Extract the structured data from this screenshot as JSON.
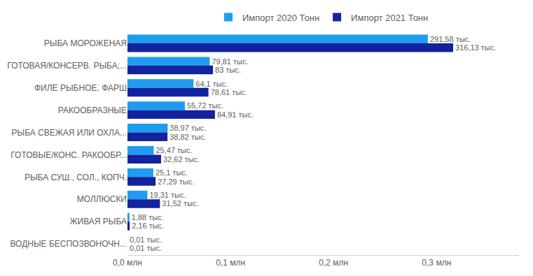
{
  "chart_data": {
    "type": "bar",
    "orientation": "horizontal",
    "legend": "top",
    "data_labels": true,
    "grid": false,
    "categories": [
      "РЫБА МОРОЖЕНАЯ",
      "ГОТОВАЯ/КОНСЕРВ. РЫБА;...",
      "ФИЛЕ РЫБНОЕ, ФАРШ",
      "РАКООБРАЗНЫЕ",
      "РЫБА СВЕЖАЯ ИЛИ ОХЛА...",
      "ГОТОВЫЕ/КОНС. РАКООБР...",
      "РЫБА СУШ., СОЛ., КОПЧ.",
      "МОЛЛЮСКИ",
      "ЖИВАЯ РЫБА",
      "ВОДНЫЕ БЕСПОЗВОНОЧН..."
    ],
    "series": [
      {
        "name": "Импорт 2020 Тонн",
        "color": "#1f9cf0",
        "values": [
          291580,
          79810,
          64100,
          55720,
          38970,
          25470,
          25100,
          19310,
          1880,
          10
        ],
        "value_labels": [
          "291,58 тыс.",
          "79,81 тыс.",
          "64,1 тыс.",
          "55,72 тыс.",
          "38,97 тыс.",
          "25,47 тыс.",
          "25,1 тыс.",
          "19,31 тыс.",
          "1,88 тыс.",
          "0,01 тыс."
        ]
      },
      {
        "name": "Импорт 2021 Тонн",
        "color": "#12239e",
        "values": [
          316130,
          83000,
          78610,
          84910,
          38820,
          32620,
          27290,
          31520,
          2160,
          10
        ],
        "value_labels": [
          "316,13 тыс.",
          "83 тыс.",
          "78,61 тыс.",
          "84,91 тыс.",
          "38,82 тыс.",
          "32,62 тыс.",
          "27,29 тыс.",
          "31,52 тыс.",
          "2,16 тыс.",
          "0,01 тыс."
        ]
      }
    ],
    "xlim": [
      0,
      380000
    ],
    "xticks": [
      {
        "value": 0,
        "label": "0,0 млн"
      },
      {
        "value": 100000,
        "label": "0,1 млн"
      },
      {
        "value": 200000,
        "label": "0,2 млн"
      },
      {
        "value": 300000,
        "label": "0,3 млн"
      }
    ]
  }
}
